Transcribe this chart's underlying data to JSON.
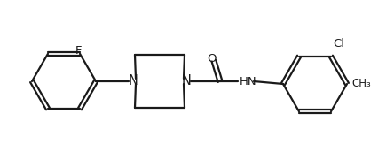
{
  "bg_color": "#ffffff",
  "line_color": "#1a1a1a",
  "line_width": 1.6,
  "font_size": 9.5,
  "atoms": {
    "F_label": "F",
    "N1_label": "N",
    "N2_label": "N",
    "O_label": "O",
    "HN_label": "HN",
    "Cl_label": "Cl",
    "CH3_label": "CH₃"
  }
}
